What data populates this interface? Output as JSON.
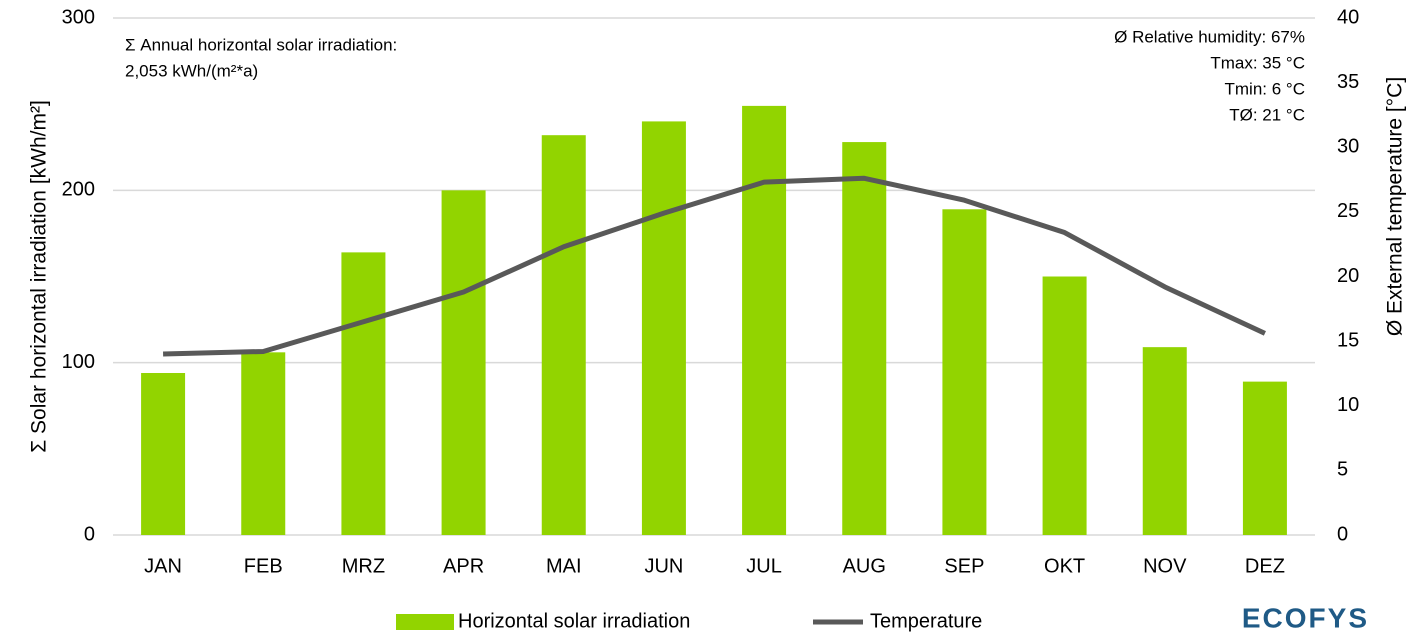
{
  "chart_data": {
    "type": "bar_line",
    "ylabel": "Σ Solar horizontal irradiation [kWh/m²]",
    "y2label": "Ø External temperature [°C]",
    "annotations_left": [
      "Σ Annual horizontal solar irradiation:",
      "2,053 kWh/(m²*a)"
    ],
    "annotations_right": [
      "Ø Relative  humidity: 67%",
      "Tmax:  35 °C",
      "Tmin:  6 °C",
      "TØ: 21 °C"
    ],
    "categories": [
      "JAN",
      "FEB",
      "MRZ",
      "APR",
      "MAI",
      "JUN",
      "JUL",
      "AUG",
      "SEP",
      "OKT",
      "NOV",
      "DEZ"
    ],
    "series": [
      {
        "name": "Horizontal solar irradiation",
        "type": "bar",
        "color": "#92d400",
        "values": [
          94,
          106,
          164,
          200,
          232,
          240,
          249,
          228,
          189,
          150,
          109,
          89
        ]
      },
      {
        "name": "Temperature",
        "type": "line",
        "axis": "y2",
        "color": "#595959",
        "values": [
          14.0,
          14.2,
          16.5,
          18.8,
          22.3,
          24.9,
          27.3,
          27.6,
          25.9,
          23.4,
          19.2,
          15.6
        ]
      }
    ],
    "ylim": [
      0,
      300
    ],
    "yticks": [
      0,
      100,
      200,
      300
    ],
    "y2lim": [
      0,
      40
    ],
    "y2ticks": [
      0,
      5,
      10,
      15,
      20,
      25,
      30,
      35,
      40
    ],
    "grid": true,
    "legend": "bottom"
  },
  "logo": "ECOFYS"
}
